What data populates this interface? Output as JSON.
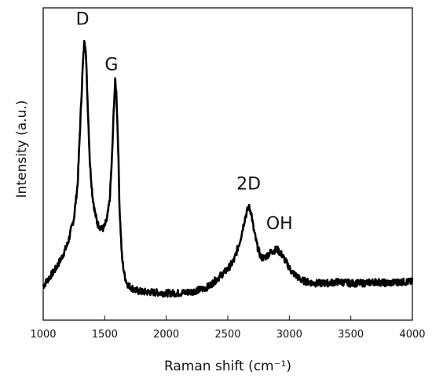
{
  "chart_data": {
    "type": "line",
    "title": "",
    "xlabel": "Raman shift (cm⁻¹)",
    "ylabel": "Intensity (a.u.)",
    "xlim": [
      1000,
      4000
    ],
    "ylim": [
      0,
      1.1
    ],
    "xticks": [
      1000,
      1500,
      2000,
      2500,
      3000,
      3500,
      4000
    ],
    "xtick_labels": [
      "1000",
      "1500",
      "2000",
      "2500",
      "3000",
      "3500",
      "4000"
    ],
    "yticks_shown": false,
    "grid": false,
    "legend": "none",
    "line_color": "#000000",
    "series": [
      {
        "x": [
          1000,
          1050,
          1100,
          1150,
          1200,
          1250,
          1280,
          1300,
          1320,
          1335,
          1345,
          1360,
          1380,
          1400,
          1420,
          1440,
          1460,
          1480,
          1500,
          1520,
          1540,
          1560,
          1575,
          1585,
          1595,
          1610,
          1620,
          1640,
          1660,
          1680,
          1700,
          1750,
          1800,
          1900,
          2000,
          2100,
          2200,
          2300,
          2350,
          2400,
          2450,
          2500,
          2550,
          2600,
          2640,
          2670,
          2690,
          2710,
          2740,
          2770,
          2800,
          2850,
          2900,
          2940,
          2980,
          3020,
          3100,
          3200,
          3300,
          3400,
          3500,
          3600,
          3700,
          3800,
          3900,
          4000
        ],
        "values": [
          0.12,
          0.15,
          0.18,
          0.22,
          0.27,
          0.36,
          0.48,
          0.68,
          0.88,
          0.99,
          0.96,
          0.78,
          0.55,
          0.44,
          0.38,
          0.34,
          0.33,
          0.32,
          0.33,
          0.36,
          0.42,
          0.58,
          0.76,
          0.84,
          0.8,
          0.6,
          0.4,
          0.22,
          0.16,
          0.13,
          0.12,
          0.105,
          0.1,
          0.098,
          0.095,
          0.095,
          0.1,
          0.11,
          0.12,
          0.14,
          0.16,
          0.18,
          0.21,
          0.28,
          0.36,
          0.4,
          0.38,
          0.32,
          0.26,
          0.22,
          0.22,
          0.24,
          0.25,
          0.23,
          0.2,
          0.17,
          0.14,
          0.13,
          0.13,
          0.135,
          0.13,
          0.13,
          0.135,
          0.13,
          0.135,
          0.135
        ]
      }
    ],
    "annotations": [
      {
        "text": "D",
        "x": 1320,
        "y": 1.04
      },
      {
        "text": "G",
        "x": 1555,
        "y": 0.88
      },
      {
        "text": "2D",
        "x": 2670,
        "y": 0.46
      },
      {
        "text": "OH",
        "x": 2920,
        "y": 0.32
      }
    ]
  }
}
